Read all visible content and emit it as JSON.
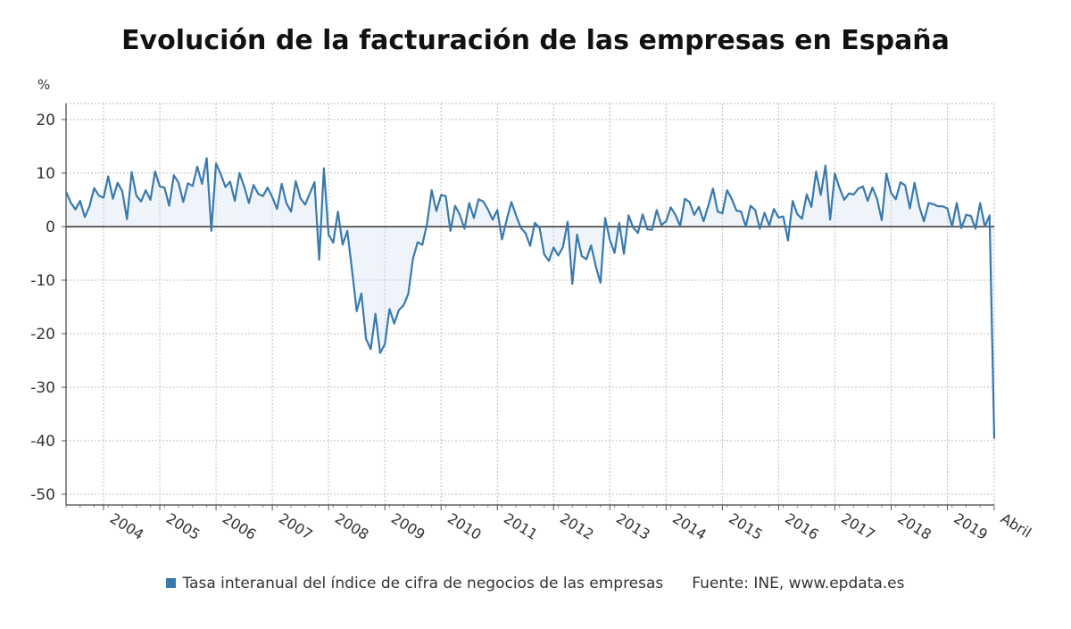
{
  "chart_data": {
    "type": "area",
    "title": "Evolución de la facturación de las empresas en España",
    "y_unit": "%",
    "ylim": [
      -52,
      23
    ],
    "y_ticks": [
      20,
      10,
      0,
      -10,
      -20,
      -30,
      -40,
      -50
    ],
    "x_tick_labels": [
      "2004",
      "2005",
      "2006",
      "2007",
      "2008",
      "2009",
      "2010",
      "2011",
      "2012",
      "2013",
      "2014",
      "2015",
      "2016",
      "2017",
      "2018",
      "2019",
      "Abril"
    ],
    "x_range": [
      "2003-05",
      "2020-04"
    ],
    "grid": true,
    "legend_position": "bottom",
    "series": [
      {
        "name": "Tasa interanual del índice de cifra de negocios de las empresas",
        "color": "#3a79ad",
        "start": "2003-05",
        "frequency": "monthly",
        "values": [
          6.5,
          4.5,
          3.2,
          4.8,
          1.8,
          3.8,
          7.2,
          5.8,
          5.4,
          9.4,
          5.2,
          8.2,
          6.6,
          1.4,
          10.2,
          5.8,
          4.7,
          6.8,
          5.0,
          10.3,
          7.5,
          7.3,
          3.9,
          9.6,
          8.2,
          4.6,
          8.1,
          7.6,
          11.2,
          8.0,
          12.8,
          -0.8,
          11.8,
          9.8,
          7.4,
          8.4,
          4.8,
          10.0,
          7.5,
          4.4,
          7.8,
          6.1,
          5.7,
          7.3,
          5.5,
          3.3,
          8.0,
          4.4,
          2.8,
          8.5,
          5.3,
          4.1,
          6.2,
          8.3,
          -6.2,
          10.9,
          -1.5,
          -3.0,
          2.8,
          -3.4,
          -0.8,
          -8.1,
          -15.8,
          -12.5,
          -21.0,
          -22.9,
          -16.3,
          -23.6,
          -22.0,
          -15.4,
          -18.1,
          -15.6,
          -14.7,
          -12.6,
          -6.0,
          -2.9,
          -3.4,
          0.5,
          6.8,
          2.9,
          5.9,
          5.7,
          -0.8,
          3.9,
          2.2,
          -0.4,
          4.4,
          1.6,
          5.1,
          4.7,
          3.2,
          1.3,
          3.1,
          -2.4,
          1.3,
          4.6,
          2.1,
          -0.2,
          -1.2,
          -3.6,
          0.7,
          -0.2,
          -5.2,
          -6.4,
          -3.9,
          -5.4,
          -3.8,
          0.9,
          -10.7,
          -1.5,
          -5.5,
          -6.1,
          -3.5,
          -7.4,
          -10.5,
          1.6,
          -2.5,
          -4.9,
          0.7,
          -5.1,
          2.1,
          -0.2,
          -1.2,
          2.3,
          -0.5,
          -0.6,
          3.1,
          0.3,
          1.0,
          3.6,
          2.2,
          0.1,
          5.2,
          4.6,
          2.2,
          3.7,
          1.0,
          3.9,
          7.1,
          2.8,
          2.5,
          6.8,
          5.2,
          3.0,
          2.8,
          0.0,
          3.9,
          3.1,
          -0.4,
          2.6,
          0.2,
          3.3,
          1.7,
          1.9,
          -2.6,
          4.8,
          2.3,
          1.5,
          6.0,
          3.7,
          10.3,
          5.9,
          11.4,
          1.3,
          9.9,
          7.2,
          5.0,
          6.2,
          6.0,
          7.1,
          7.5,
          4.8,
          7.3,
          5.2,
          1.2,
          9.9,
          6.3,
          5.1,
          8.3,
          7.7,
          3.4,
          8.2,
          3.8,
          1.0,
          4.4,
          4.2,
          3.8,
          3.8,
          3.4,
          0.0,
          4.4,
          -0.3,
          2.2,
          2.0,
          -0.4,
          4.4,
          0.0,
          2.1,
          -39.6
        ]
      }
    ]
  },
  "legend": {
    "series_label": "Tasa interanual del índice de cifra de negocios de las empresas",
    "source": "Fuente: INE, www.epdata.es"
  }
}
